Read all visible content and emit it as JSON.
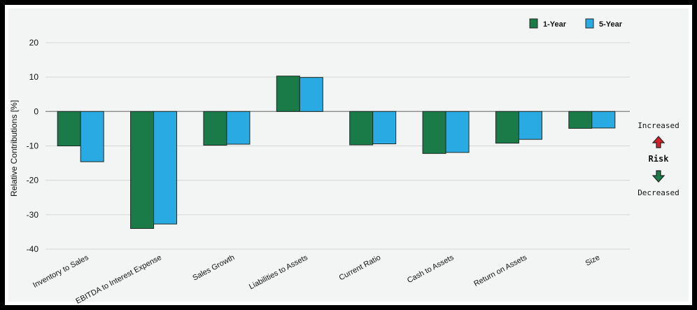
{
  "chart_data": {
    "type": "bar",
    "categories": [
      "Inventory to Sales",
      "EBITDA to Interest Expense",
      "Sales Growth",
      "Liabilities to Assets",
      "Current Ratio",
      "Cash to Assets",
      "Return on Assets",
      "Size"
    ],
    "series": [
      {
        "name": "1-Year",
        "color": "#1a7a48",
        "values": [
          -10,
          -34,
          -9.8,
          10.3,
          -9.7,
          -12.2,
          -9.2,
          -4.9
        ]
      },
      {
        "name": "5-Year",
        "color": "#2aaae2",
        "values": [
          -14.6,
          -32.7,
          -9.5,
          9.9,
          -9.4,
          -11.9,
          -8.1,
          -4.8
        ]
      }
    ],
    "ylabel": "Relative Contributions [%]",
    "ylim": [
      -40,
      20
    ],
    "yticks": [
      -40,
      -30,
      -20,
      -10,
      0,
      10,
      20
    ],
    "grid": true,
    "legend_position": "top-right"
  },
  "risk_indicator": {
    "increased_label": "Increased",
    "center_label": "Risk",
    "decreased_label": "Decreased",
    "up_icon": "red-up-arrow-icon",
    "down_icon": "green-down-arrow-icon",
    "up_color": "#d2202a",
    "down_color": "#1a7a48"
  }
}
